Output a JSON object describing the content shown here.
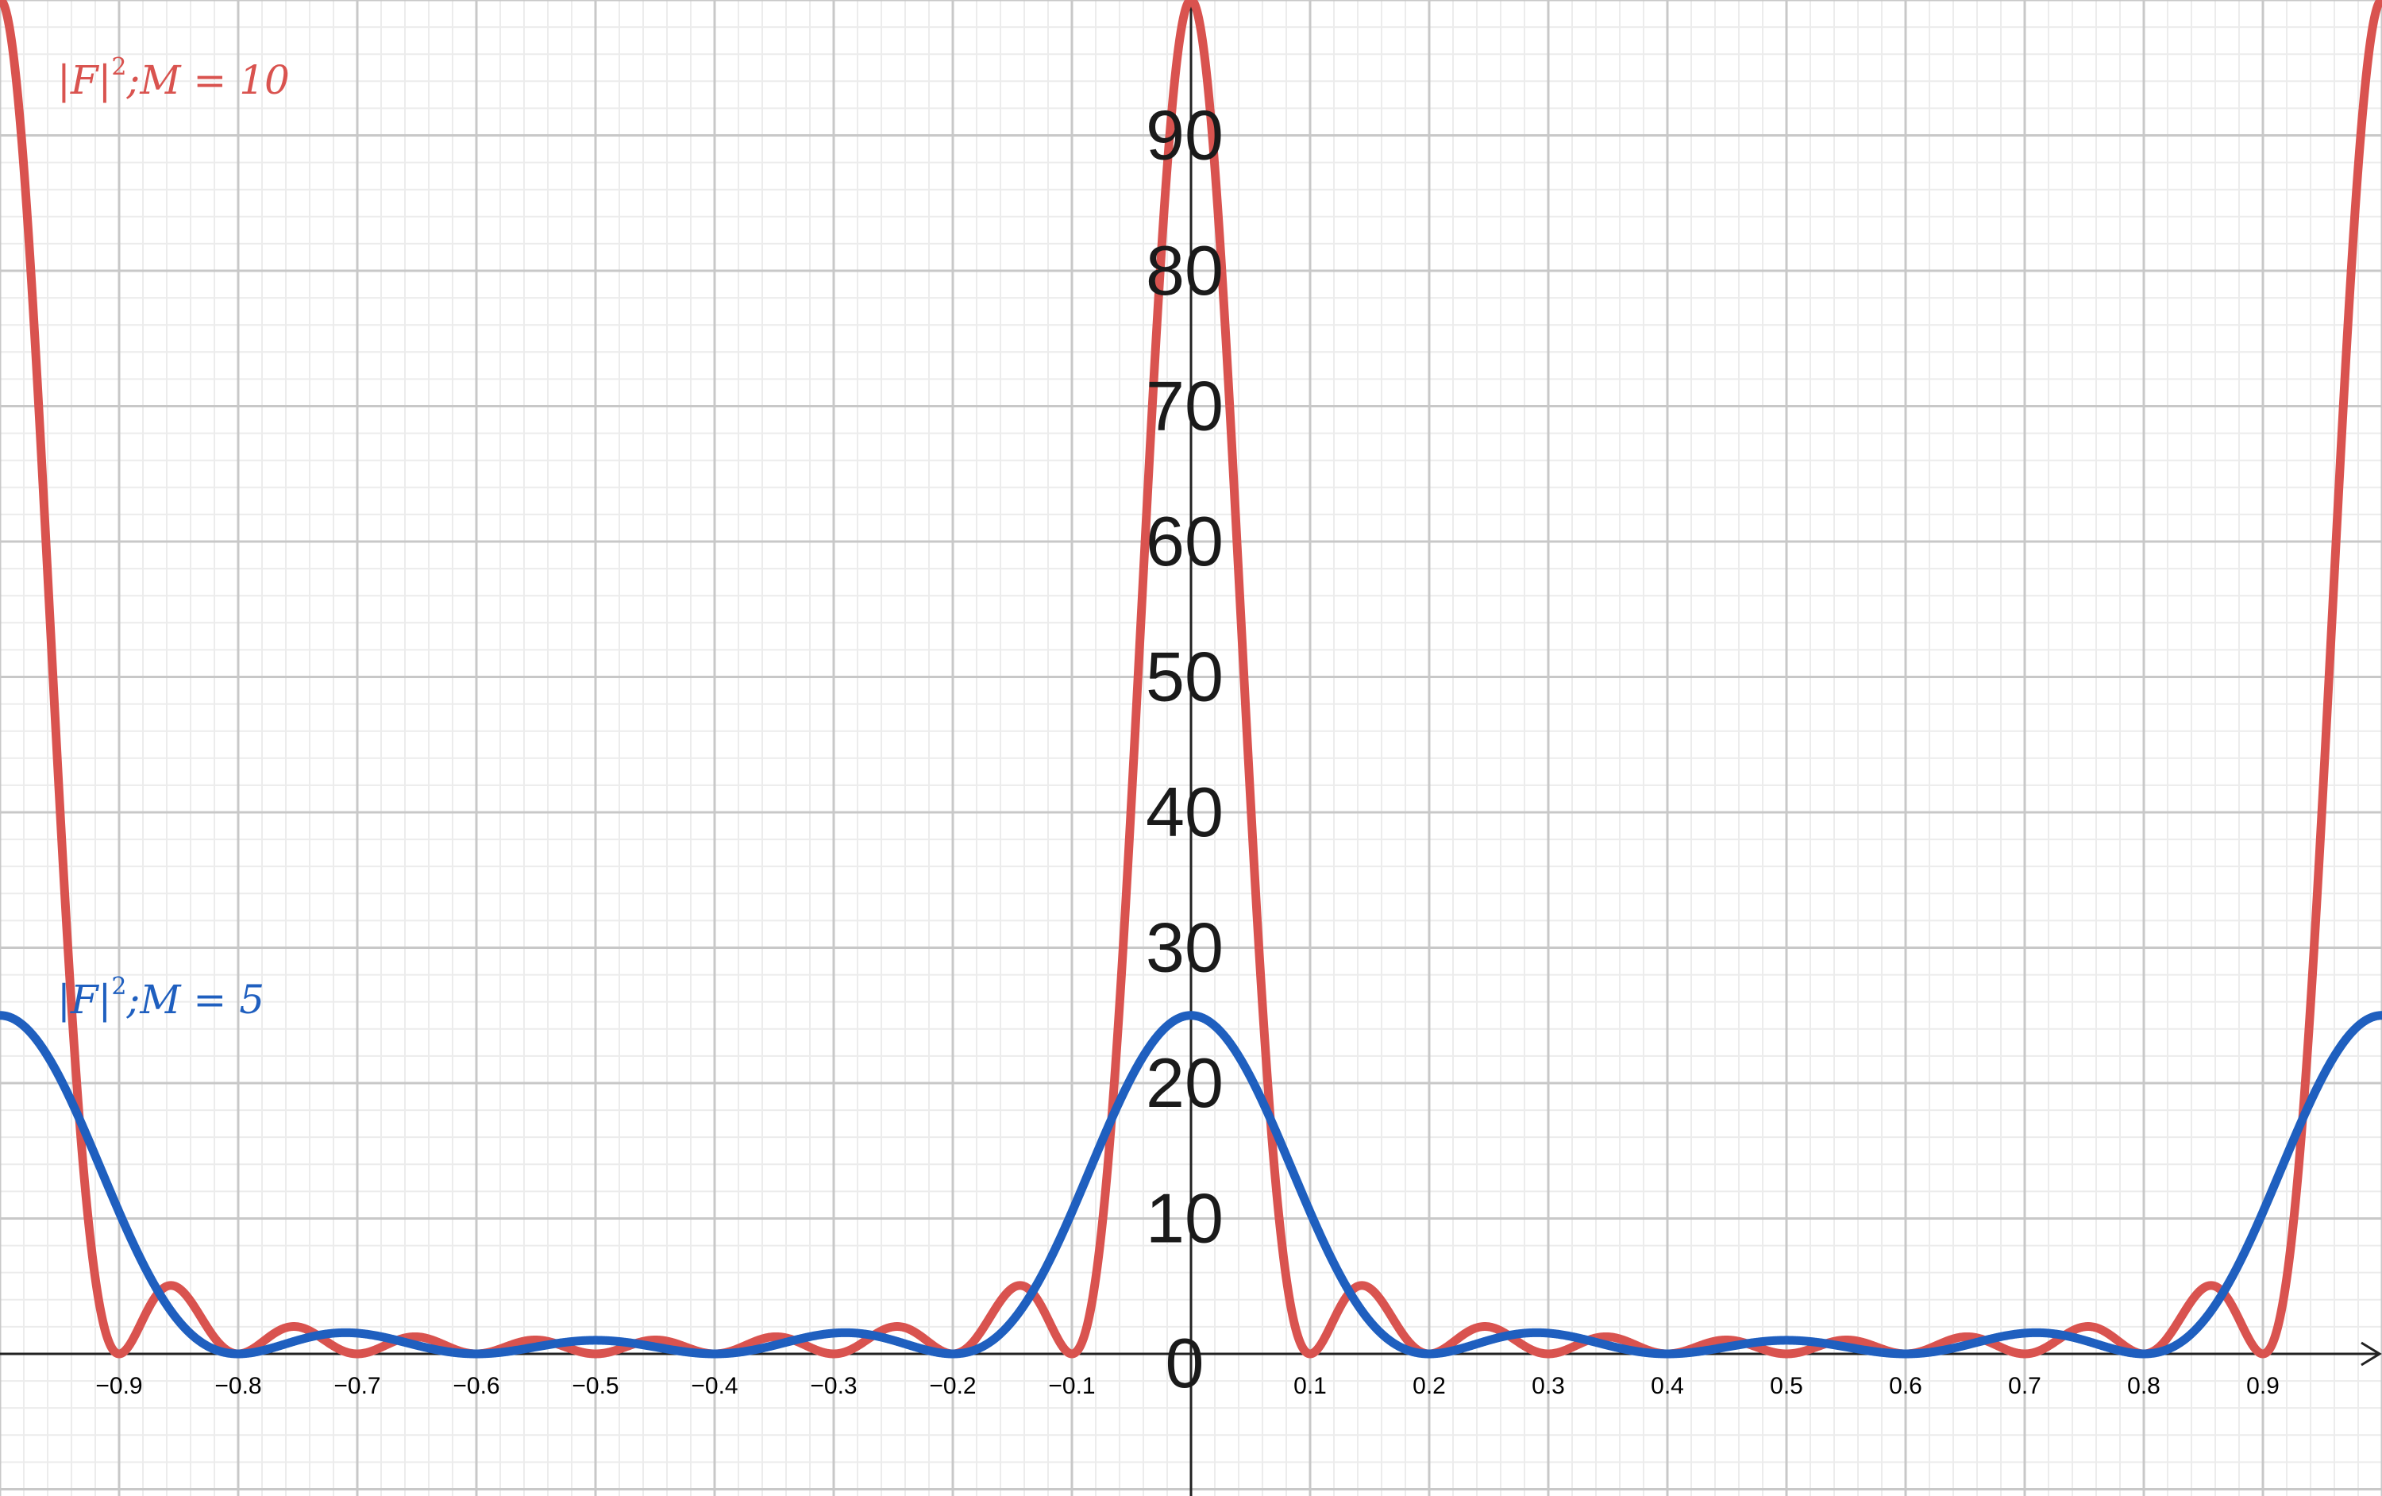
{
  "chart_data": {
    "type": "line",
    "title": "",
    "xlabel": "",
    "ylabel": "",
    "xlim": [
      -1.0,
      1.0
    ],
    "ylim": [
      -10.5,
      100
    ],
    "grid": true,
    "x_ticks": [
      -0.9,
      -0.8,
      -0.7,
      -0.6,
      -0.5,
      -0.4,
      -0.3,
      -0.2,
      -0.1,
      0.1,
      0.2,
      0.3,
      0.4,
      0.5,
      0.6,
      0.7,
      0.8,
      0.9
    ],
    "x_tick_labels": [
      "−0.9",
      "−0.8",
      "−0.7",
      "−0.6",
      "−0.5",
      "−0.4",
      "−0.3",
      "−0.2",
      "−0.1",
      "0.1",
      "0.2",
      "0.3",
      "0.4",
      "0.5",
      "0.6",
      "0.7",
      "0.8",
      "0.9"
    ],
    "y_ticks": [
      0,
      10,
      20,
      30,
      40,
      50,
      60,
      70,
      80,
      90
    ],
    "y_tick_labels": [
      "0",
      "10",
      "20",
      "30",
      "40",
      "50",
      "60",
      "70",
      "80",
      "90"
    ],
    "series": [
      {
        "label_main": "|F|",
        "label_sup": "2",
        "label_tail": ";M = 5",
        "M": 5,
        "color": "#1f5fbf",
        "function": "(sin(5*pi*x)/sin(pi*x))^2",
        "x": [
          -1.0,
          -0.95,
          -0.9,
          -0.85,
          -0.8,
          -0.75,
          -0.7,
          -0.65,
          -0.6,
          -0.55,
          -0.5,
          -0.45,
          -0.4,
          -0.35,
          -0.3,
          -0.25,
          -0.2,
          -0.15,
          -0.1,
          -0.05,
          0.0,
          0.05,
          0.1,
          0.15,
          0.2,
          0.25,
          0.3,
          0.35,
          0.4,
          0.45,
          0.5,
          0.55,
          0.6,
          0.65,
          0.7,
          0.75,
          0.8,
          0.85,
          0.9,
          0.95,
          1.0
        ],
        "y": [
          25.0,
          20.9,
          10.9,
          2.7,
          0.0,
          1.0,
          1.5,
          1.0,
          0.3,
          0.4,
          1.0,
          0.4,
          0.3,
          1.0,
          1.5,
          1.0,
          0.0,
          2.7,
          10.9,
          20.9,
          25.0,
          20.9,
          10.9,
          2.7,
          0.0,
          1.0,
          1.5,
          1.0,
          0.3,
          0.4,
          1.0,
          0.4,
          0.3,
          1.0,
          1.5,
          1.0,
          0.0,
          2.7,
          10.9,
          20.9,
          25.0
        ]
      },
      {
        "label_main": "|F|",
        "label_sup": "2",
        "label_tail": ";M = 10",
        "M": 10,
        "color": "#d9534f",
        "function": "(sin(10*pi*x)/sin(pi*x))^2",
        "x": [
          -1.0,
          -0.95,
          -0.9,
          -0.85,
          -0.8,
          -0.75,
          -0.7,
          -0.65,
          -0.6,
          -0.55,
          -0.5,
          -0.45,
          -0.4,
          -0.35,
          -0.3,
          -0.25,
          -0.2,
          -0.15,
          -0.1,
          -0.05,
          0.0,
          0.05,
          0.1,
          0.15,
          0.2,
          0.25,
          0.3,
          0.35,
          0.4,
          0.45,
          0.5,
          0.55,
          0.6,
          0.65,
          0.7,
          0.75,
          0.8,
          0.85,
          0.9,
          0.95,
          1.0
        ],
        "y": [
          100.0,
          40.9,
          0.0,
          4.6,
          0.0,
          2.0,
          0.0,
          1.3,
          0.0,
          1.0,
          0.0,
          1.0,
          0.0,
          1.3,
          0.0,
          2.0,
          0.0,
          4.6,
          0.0,
          40.9,
          100.0,
          40.9,
          0.0,
          4.6,
          0.0,
          2.0,
          0.0,
          1.3,
          0.0,
          1.0,
          0.0,
          1.0,
          0.0,
          1.3,
          0.0,
          2.0,
          0.0,
          4.6,
          0.0,
          40.9,
          100.0
        ]
      }
    ]
  }
}
